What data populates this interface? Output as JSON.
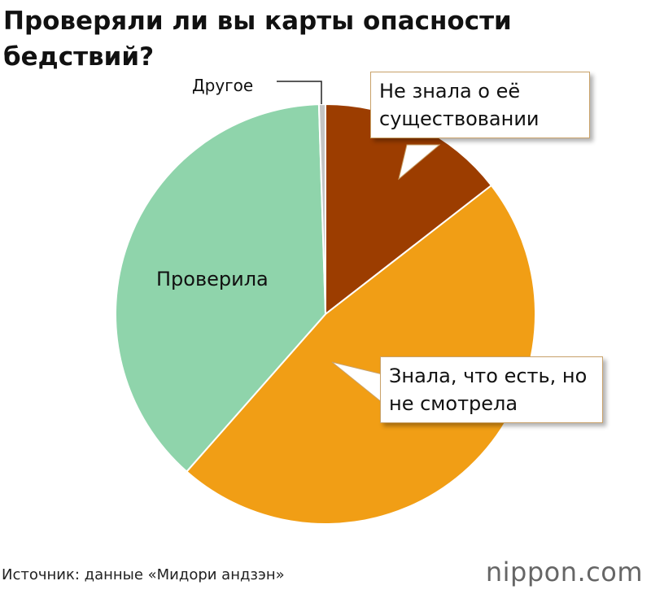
{
  "chart_data": {
    "type": "pie",
    "title": "Проверяли ли вы карты опасности бедствий?",
    "categories": [
      "Не знала о её существовании",
      "Знала, что есть, но не смотрела",
      "Проверила",
      "Другое"
    ],
    "values": [
      14.5,
      47,
      38,
      0.5
    ],
    "colors": [
      "#9c3d00",
      "#f19e15",
      "#8fd4ab",
      "#c4c4c4"
    ],
    "source": "Источник: данные «Мидори андзэн»",
    "brand": "nippon.com"
  }
}
